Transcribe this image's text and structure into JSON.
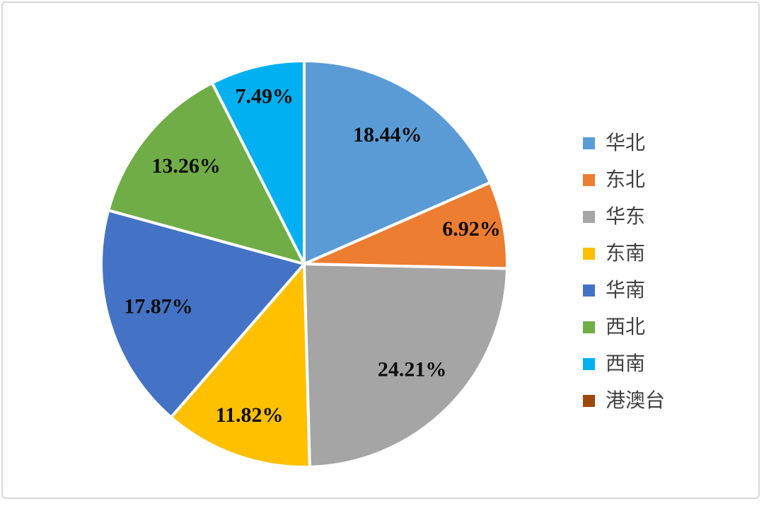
{
  "chart_data": {
    "type": "pie",
    "title": "",
    "categories": [
      "华北",
      "东北",
      "华东",
      "东南",
      "华南",
      "西北",
      "西南",
      "港澳台"
    ],
    "values": [
      18.44,
      6.92,
      24.21,
      11.82,
      17.87,
      13.26,
      7.49,
      0.0
    ],
    "labels": [
      "18.44%",
      "6.92%",
      "24.21%",
      "11.82%",
      "17.87%",
      "13.26%",
      "7.49%",
      ""
    ],
    "colors": [
      "#5B9BD5",
      "#ED7D31",
      "#A5A5A5",
      "#FFC000",
      "#4472C4",
      "#70AD47",
      "#00B0F0",
      "#9E480E"
    ],
    "start_angle_deg": 0,
    "direction": "clockwise",
    "legend_position": "right",
    "slice_border_color": "#FFFFFF",
    "label_color": "#0D0D0D",
    "legend_text_color": "#404040",
    "background": "#FFFFFF",
    "frame_border_color": "#D9D9D9"
  }
}
